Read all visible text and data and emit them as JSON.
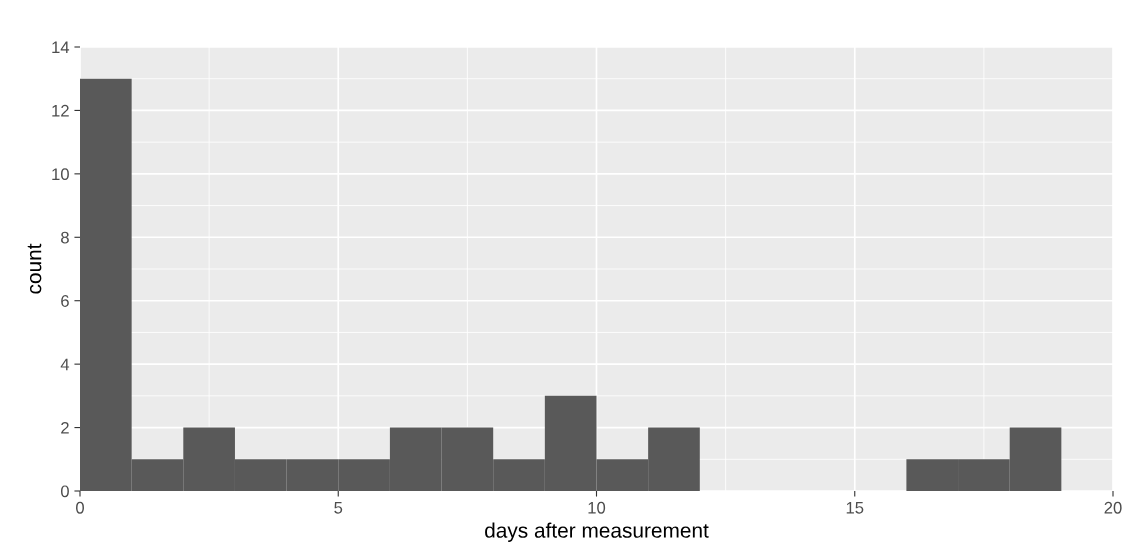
{
  "chart_data": {
    "type": "histogram",
    "xlabel": "days after measurement",
    "ylabel": "count",
    "bins": [
      0,
      1,
      2,
      3,
      4,
      5,
      6,
      7,
      8,
      9,
      10,
      11,
      12,
      13,
      14,
      15,
      16,
      17,
      18,
      19
    ],
    "values": [
      13,
      1,
      2,
      1,
      1,
      1,
      2,
      2,
      1,
      3,
      1,
      2,
      0,
      0,
      0,
      0,
      1,
      1,
      2
    ],
    "color": "#595959",
    "xlim": [
      0,
      20
    ],
    "ylim": [
      0,
      14
    ],
    "xticks": [
      0,
      5,
      10,
      15,
      20
    ],
    "yticks": [
      0,
      2,
      4,
      6,
      8,
      10,
      12,
      14
    ],
    "grid": true
  }
}
